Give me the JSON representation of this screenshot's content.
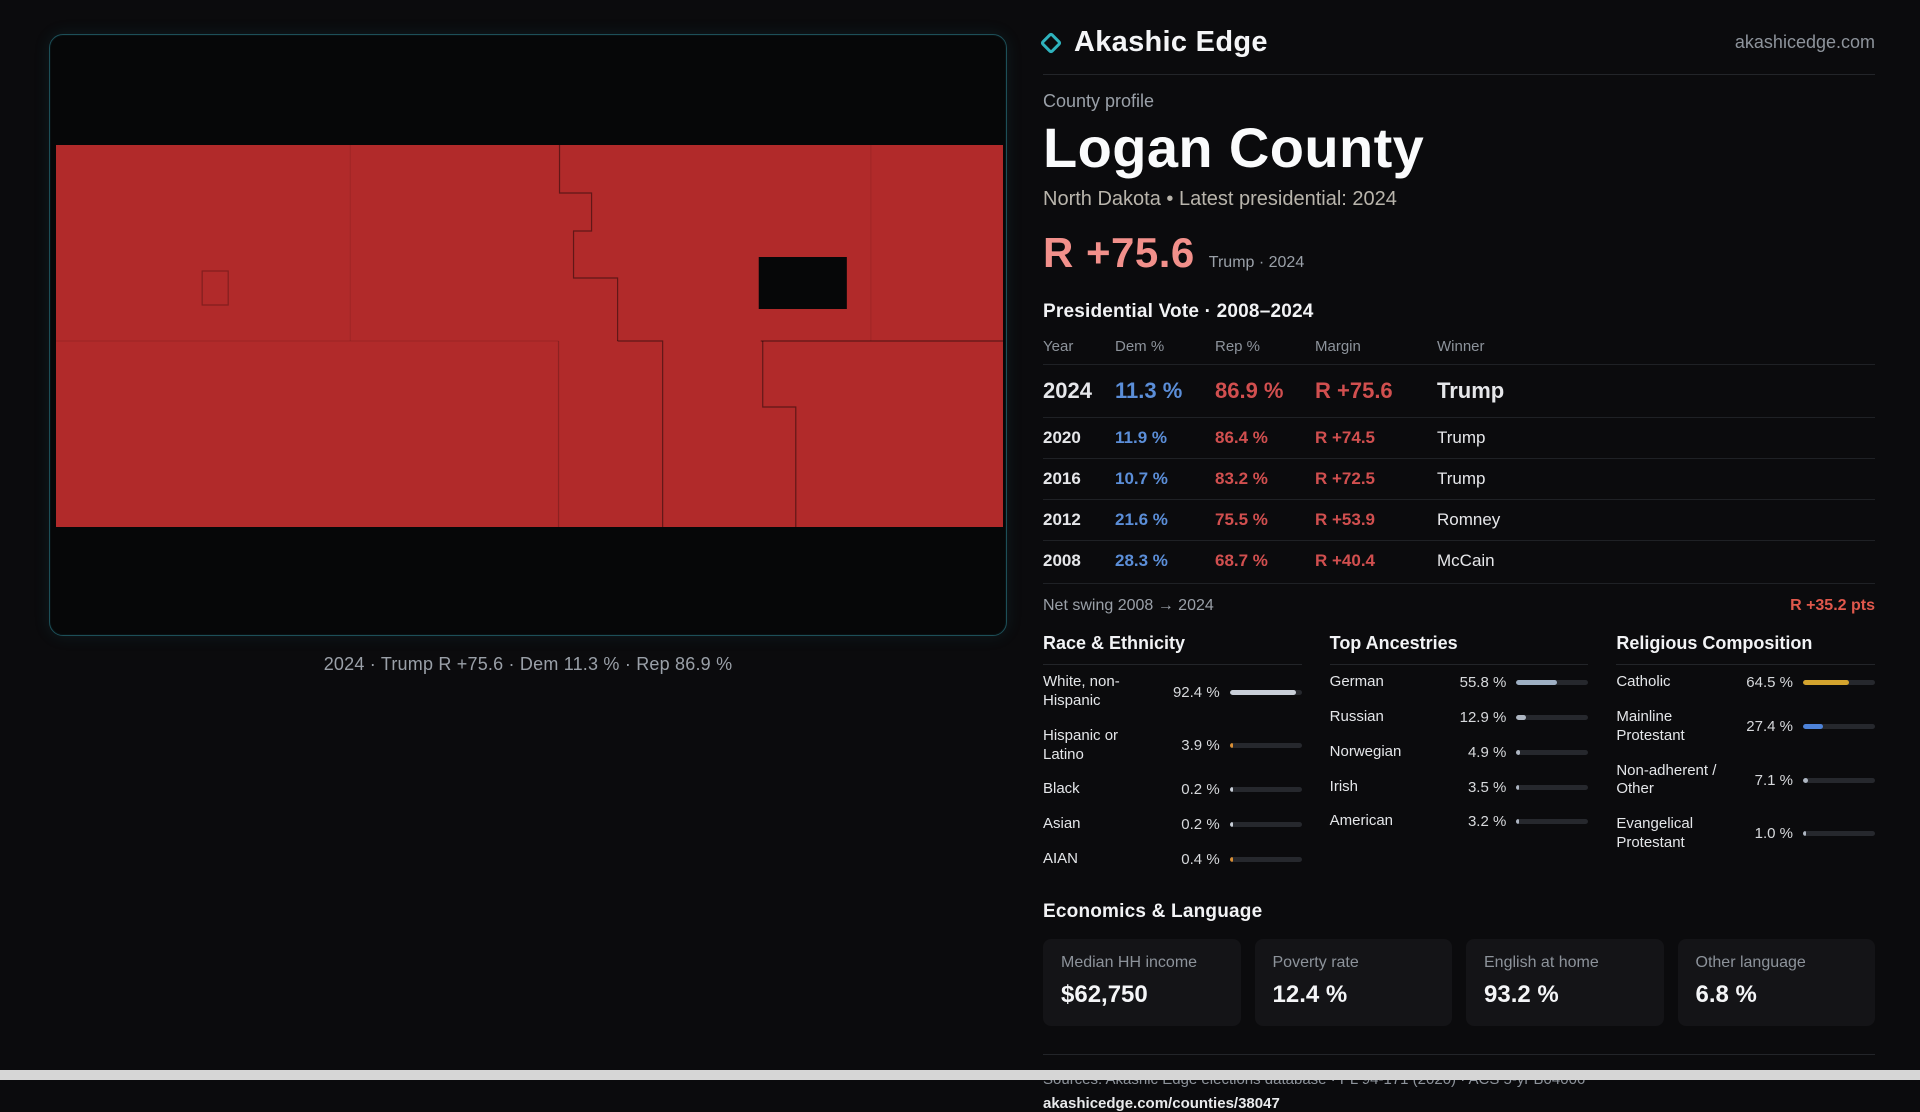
{
  "brand": {
    "name": "Akashic Edge",
    "domain": "akashicedge.com"
  },
  "colors": {
    "accent_teal": "#2fb3bd",
    "map_red": "#b12a2a",
    "dem_blue": "#5b8ed8",
    "rep_red": "#d14f4f",
    "margin_salmon": "#f2908b",
    "swing_red": "#e0584c"
  },
  "map": {
    "caption": "2024 · Trump R +75.6 · Dem 11.3 % · Rep 86.9 %"
  },
  "profile": {
    "eyebrow": "County profile",
    "title": "Logan County",
    "subtitle": "North Dakota • Latest presidential: 2024",
    "margin_value": "R +75.6",
    "margin_note": "Trump · 2024"
  },
  "vote_table": {
    "heading": "Presidential Vote · 2008–2024",
    "columns": [
      "Year",
      "Dem %",
      "Rep %",
      "Margin",
      "Winner"
    ],
    "rows": [
      {
        "year": "2024",
        "dem": "11.3 %",
        "rep": "86.9 %",
        "margin": "R +75.6",
        "winner": "Trump"
      },
      {
        "year": "2020",
        "dem": "11.9 %",
        "rep": "86.4 %",
        "margin": "R +74.5",
        "winner": "Trump"
      },
      {
        "year": "2016",
        "dem": "10.7 %",
        "rep": "83.2 %",
        "margin": "R +72.5",
        "winner": "Trump"
      },
      {
        "year": "2012",
        "dem": "21.6 %",
        "rep": "75.5 %",
        "margin": "R +53.9",
        "winner": "Romney"
      },
      {
        "year": "2008",
        "dem": "28.3 %",
        "rep": "68.7 %",
        "margin": "R +40.4",
        "winner": "McCain"
      }
    ],
    "net_swing_label": "Net swing 2008 → 2024",
    "net_swing_value": "R +35.2 pts"
  },
  "demographics": [
    {
      "id": "race",
      "heading": "Race & Ethnicity",
      "items": [
        {
          "label": "White, non-Hispanic",
          "value": "92.4 %",
          "pct": 92.4,
          "color": "#c9cfd8"
        },
        {
          "label": "Hispanic or Latino",
          "value": "3.9 %",
          "pct": 3.9,
          "color": "#d98f35"
        },
        {
          "label": "Black",
          "value": "0.2 %",
          "pct": 0.2,
          "color": "#c9cfd8"
        },
        {
          "label": "Asian",
          "value": "0.2 %",
          "pct": 0.2,
          "color": "#c9cfd8"
        },
        {
          "label": "AIAN",
          "value": "0.4 %",
          "pct": 0.4,
          "color": "#d98f35"
        }
      ]
    },
    {
      "id": "ancestries",
      "heading": "Top Ancestries",
      "items": [
        {
          "label": "German",
          "value": "55.8 %",
          "pct": 55.8,
          "color": "#9fb0c4"
        },
        {
          "label": "Russian",
          "value": "12.9 %",
          "pct": 12.9,
          "color": "#aeb6c2"
        },
        {
          "label": "Norwegian",
          "value": "4.9 %",
          "pct": 4.9,
          "color": "#aeb6c2"
        },
        {
          "label": "Irish",
          "value": "3.5 %",
          "pct": 3.5,
          "color": "#aeb6c2"
        },
        {
          "label": "American",
          "value": "3.2 %",
          "pct": 3.2,
          "color": "#aeb6c2"
        }
      ]
    },
    {
      "id": "religion",
      "heading": "Religious Composition",
      "items": [
        {
          "label": "Catholic",
          "value": "64.5 %",
          "pct": 64.5,
          "color": "#d4a42e"
        },
        {
          "label": "Mainline Protestant",
          "value": "27.4 %",
          "pct": 27.4,
          "color": "#4d82d8"
        },
        {
          "label": "Non-adherent / Other",
          "value": "7.1 %",
          "pct": 7.1,
          "color": "#aeb6c2"
        },
        {
          "label": "Evangelical Protestant",
          "value": "1.0 %",
          "pct": 1.0,
          "color": "#aeb6c2"
        }
      ]
    }
  ],
  "economics": {
    "heading": "Economics & Language",
    "stats": [
      {
        "label": "Median HH income",
        "value": "$62,750"
      },
      {
        "label": "Poverty rate",
        "value": "12.4 %"
      },
      {
        "label": "English at home",
        "value": "93.2 %"
      },
      {
        "label": "Other language",
        "value": "6.8 %"
      }
    ]
  },
  "footer": {
    "sources": "Sources: Akashic Edge elections database · PL 94-171 (2020) · ACS 5-yr B04006",
    "permalink": "akashicedge.com/counties/38047"
  }
}
